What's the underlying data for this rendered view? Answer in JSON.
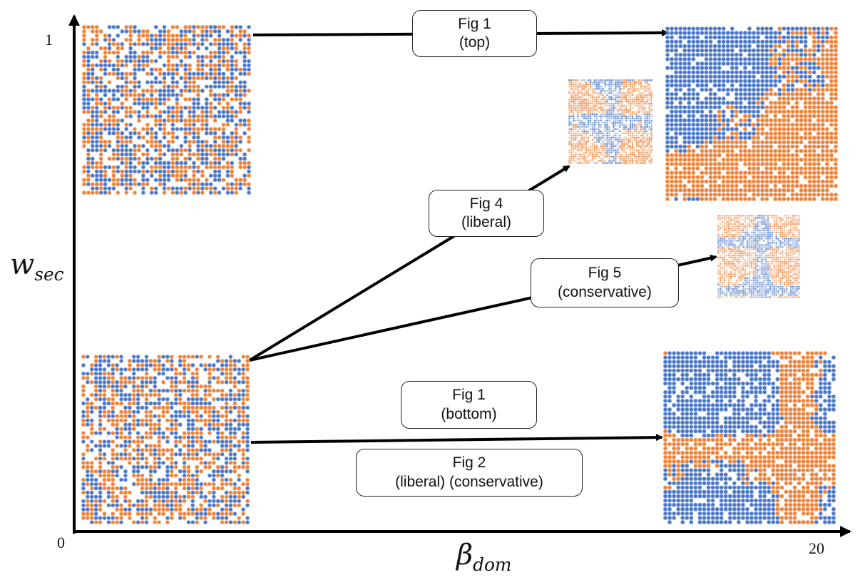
{
  "axes": {
    "x_label": "β",
    "x_label_sub": "dom",
    "y_label": "w",
    "y_label_sub": "sec",
    "x_min_tick": "0",
    "x_max_tick": "20",
    "y_max_tick": "1"
  },
  "boxes": [
    {
      "line1": "Fig 1",
      "line2": "(top)"
    },
    {
      "line1": "Fig 4",
      "line2": "(liberal)"
    },
    {
      "line1": "Fig 5",
      "line2": "(conservative)"
    },
    {
      "line1": "Fig 1",
      "line2": "(bottom)"
    },
    {
      "line1": "Fig 2",
      "line2": "(liberal) (conservative)"
    }
  ],
  "colors": {
    "blue": "#4472C4",
    "orange": "#ED7D31",
    "light_blue": "#8FAADC",
    "light_orange": "#F4B183",
    "axis": "#000000"
  },
  "lattices": [
    {
      "id": "top-left-random",
      "pattern": "random"
    },
    {
      "id": "bottom-left-random",
      "pattern": "random"
    },
    {
      "id": "top-right-segregated",
      "pattern": "large-clusters"
    },
    {
      "id": "fig4-liberal-small",
      "pattern": "swirls"
    },
    {
      "id": "fig5-conservative-small",
      "pattern": "swirls-dense"
    },
    {
      "id": "bottom-right-mixed",
      "pattern": "medium-clusters"
    }
  ]
}
